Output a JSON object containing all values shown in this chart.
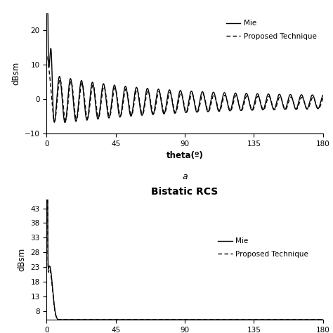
{
  "top_plot": {
    "xlabel": "theta(º)",
    "ylabel": "dBsm",
    "label_a": "a",
    "xlim": [
      0,
      180
    ],
    "ylim": [
      -10,
      25
    ],
    "yticks": [
      -10,
      0,
      10,
      20
    ],
    "xticks": [
      0,
      45,
      90,
      135,
      180
    ],
    "legend_mie": "Mie",
    "legend_proposed": "Proposed Technique"
  },
  "bottom_plot": {
    "title": "Bistatic RCS",
    "ylabel": "dBsm",
    "xlim": [
      0,
      180
    ],
    "ylim": [
      5,
      46
    ],
    "yticks": [
      8,
      13,
      18,
      23,
      28,
      33,
      38,
      43
    ],
    "xticks": [
      0,
      45,
      90,
      135,
      180
    ],
    "legend_mie": "Mie",
    "legend_proposed": "Proposed Technique"
  },
  "line_color": "#000000",
  "bg_color": "#ffffff"
}
